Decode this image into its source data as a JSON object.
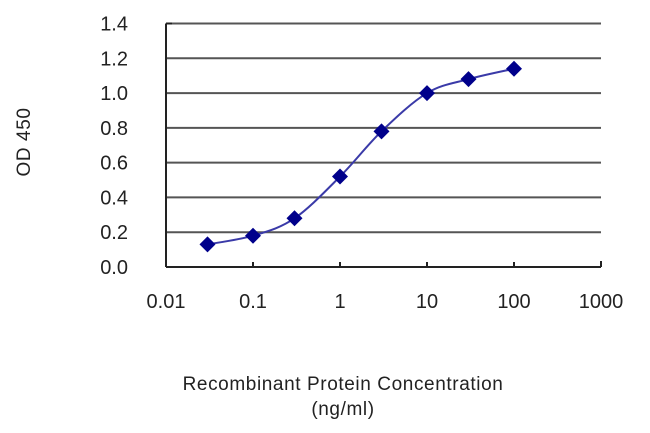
{
  "chart_data": {
    "type": "line",
    "title": "",
    "xlabel": "Recombinant Protein Concentration",
    "xlabel_unit": "(ng/ml)",
    "ylabel": "OD 450",
    "x_scale": "log",
    "xlim": [
      0.01,
      1000
    ],
    "ylim": [
      0.0,
      1.4
    ],
    "x_ticks": [
      "0.01",
      "0.1",
      "1",
      "10",
      "100",
      "1000"
    ],
    "y_ticks": [
      "0.0",
      "0.2",
      "0.4",
      "0.6",
      "0.8",
      "1.0",
      "1.2",
      "1.4"
    ],
    "grid": "horizontal",
    "legend": "none",
    "series": [
      {
        "name": "OD 450",
        "marker": "diamond",
        "line_color": "#3a3aa8",
        "marker_color": "#00008b",
        "x": [
          0.03,
          0.1,
          0.3,
          1,
          3,
          10,
          30,
          100
        ],
        "values": [
          0.13,
          0.18,
          0.28,
          0.52,
          0.78,
          1.0,
          1.08,
          1.14
        ]
      }
    ]
  }
}
